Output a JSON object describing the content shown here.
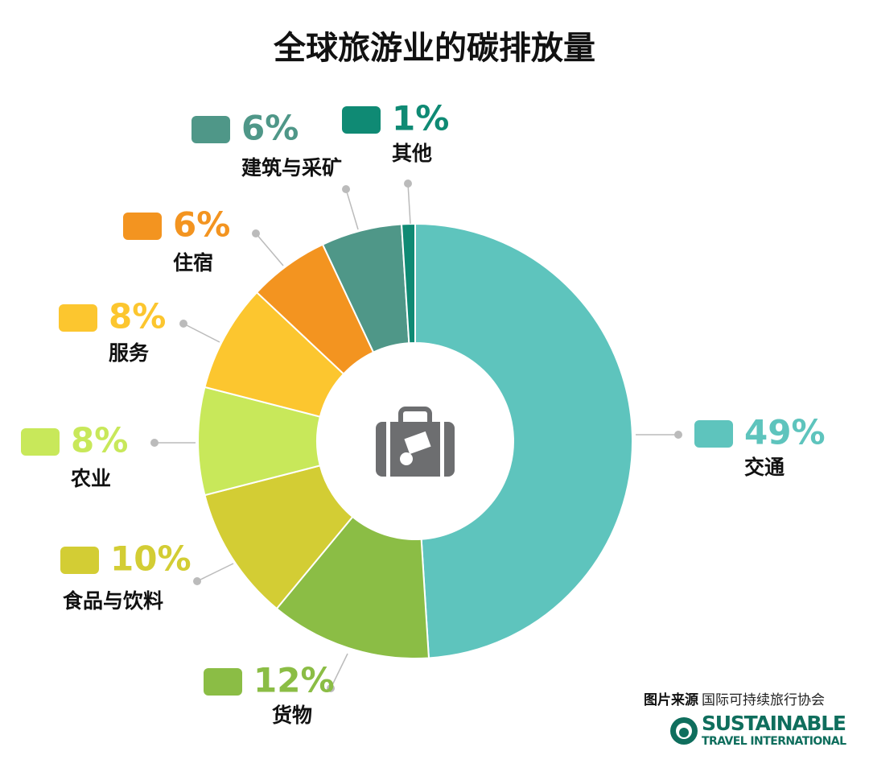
{
  "chart_data": {
    "type": "donut",
    "title": "全球旅游业的碳排放量",
    "categories": [
      "交通",
      "货物",
      "食品与饮料",
      "农业",
      "服务",
      "住宿",
      "建筑与采矿",
      "其他"
    ],
    "values": [
      49,
      12,
      10,
      8,
      8,
      6,
      6,
      1
    ],
    "value_labels": [
      "49%",
      "12%",
      "10%",
      "8%",
      "8%",
      "6%",
      "6%",
      "1%"
    ],
    "colors": [
      "#5ec4bd",
      "#8bbd45",
      "#d3cd34",
      "#c8e85a",
      "#fcc62f",
      "#f39420",
      "#4f9788",
      "#0f8a74"
    ],
    "source": {
      "label": "图片来源",
      "text": "国际可持续旅行协会"
    },
    "logo": [
      "SUSTAINABLE",
      "TRAVEL INTERNATIONAL"
    ]
  }
}
